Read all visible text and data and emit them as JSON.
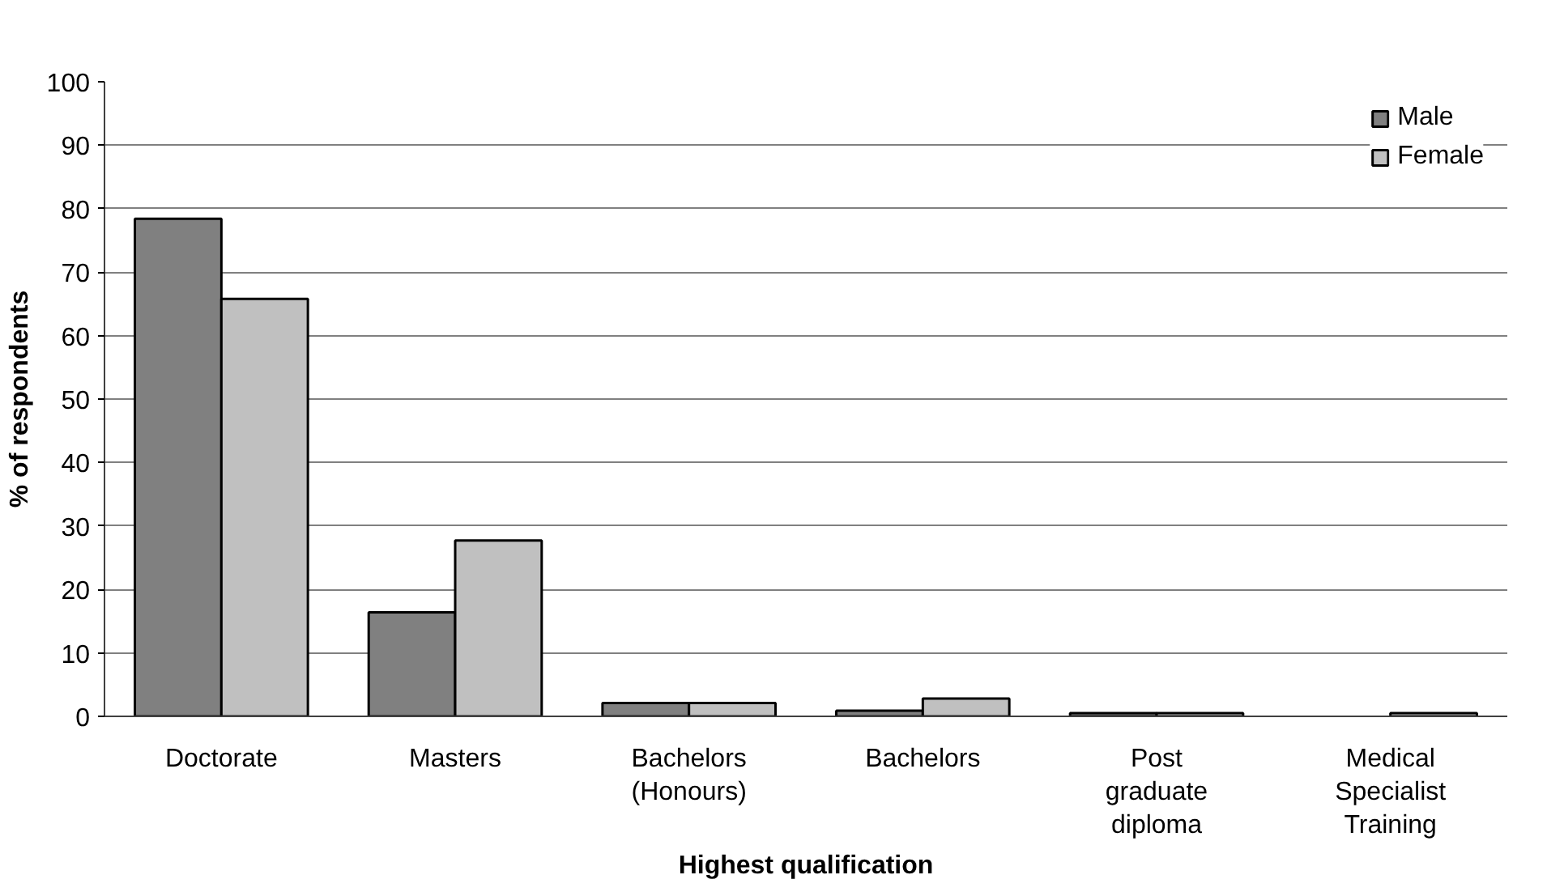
{
  "chart_data": {
    "type": "bar",
    "xlabel": "Highest qualification",
    "ylabel": "% of respondents",
    "categories": [
      "Doctorate",
      "Masters",
      "Bachelors\n(Honours)",
      "Bachelors",
      "Post\ngraduate\ndiploma",
      "Medical\nSpecialist\nTraining"
    ],
    "series": [
      {
        "name": "Male",
        "color": "#808080",
        "values": [
          78.4,
          16.4,
          2.1,
          0.9,
          0.5,
          null
        ]
      },
      {
        "name": "Female",
        "color": "#c0c0c0",
        "values": [
          65.8,
          27.7,
          2.1,
          2.8,
          0.5,
          0.5
        ]
      }
    ],
    "ylim": [
      0,
      100
    ],
    "yticks": [
      0,
      10,
      20,
      30,
      40,
      50,
      60,
      70,
      80,
      90,
      100
    ],
    "grid": "y",
    "legend": "top right"
  }
}
